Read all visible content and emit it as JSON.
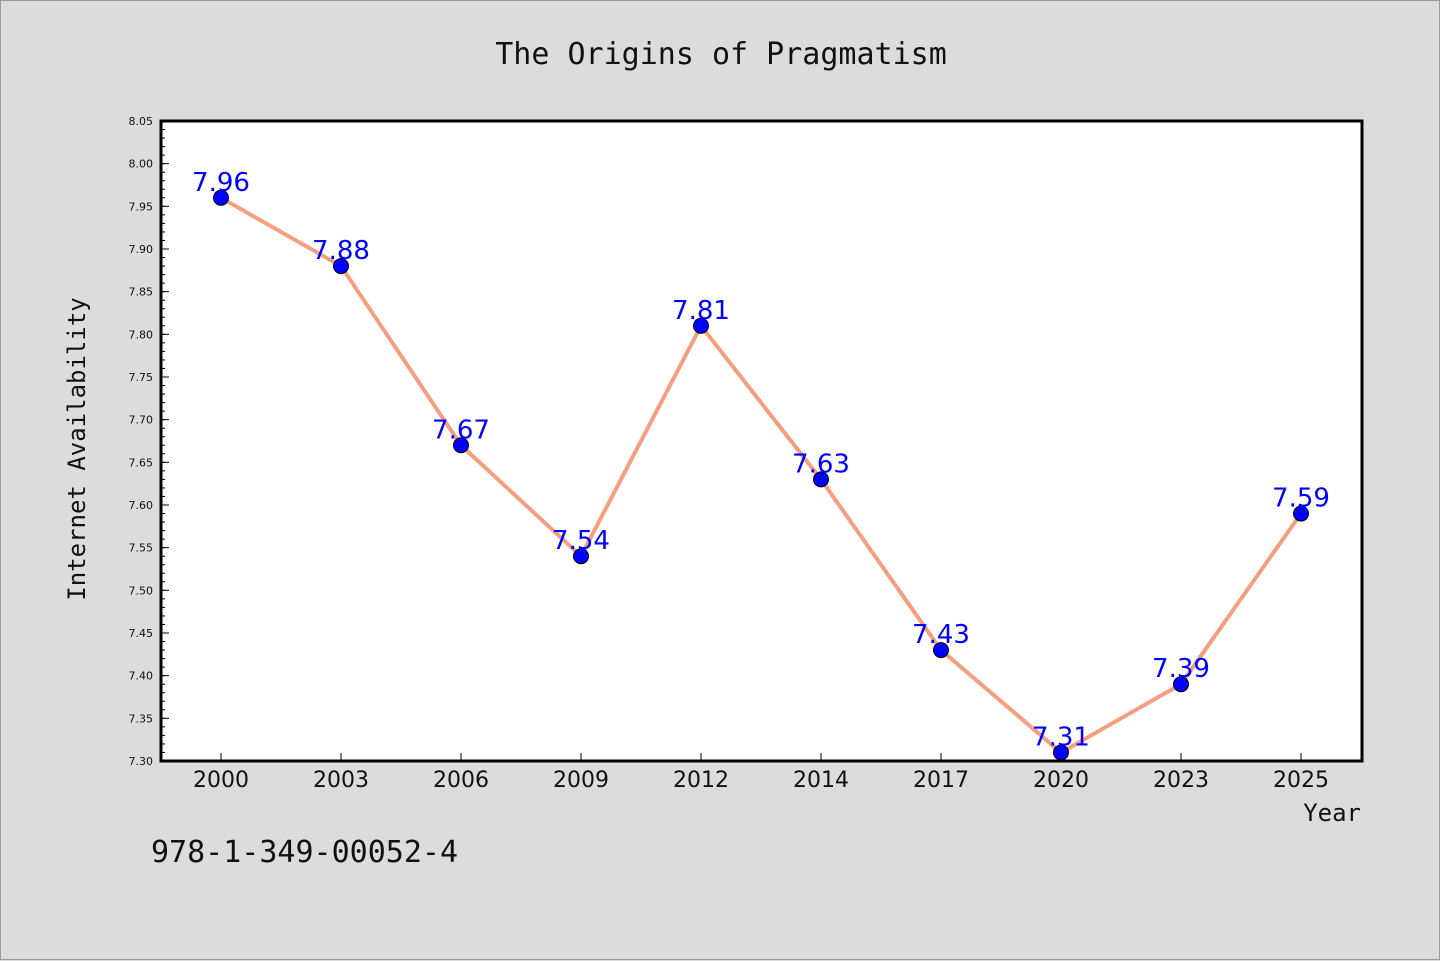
{
  "chart_data": {
    "type": "line",
    "title": "The Origins of Pragmatism",
    "xlabel": "Year",
    "ylabel": "Internet Availability",
    "categories": [
      "2000",
      "2003",
      "2006",
      "2009",
      "2012",
      "2014",
      "2017",
      "2020",
      "2023",
      "2025"
    ],
    "series": [
      {
        "values": [
          7.96,
          7.88,
          7.67,
          7.54,
          7.81,
          7.63,
          7.43,
          7.31,
          7.39,
          7.59
        ],
        "line_color": "#f4a080",
        "marker_color": "#0000ff",
        "label_color": "#0000ff"
      }
    ],
    "ylim": [
      7.3,
      8.05
    ],
    "yticks": [
      "7.30",
      "7.35",
      "7.40",
      "7.45",
      "7.50",
      "7.55",
      "7.60",
      "7.65",
      "7.70",
      "7.75",
      "7.80",
      "7.85",
      "7.90",
      "7.95",
      "8.00",
      "8.05"
    ],
    "grid": false,
    "legend": "none",
    "data_labels": true
  },
  "footer": {
    "identifier": "978-1-349-00052-4"
  }
}
